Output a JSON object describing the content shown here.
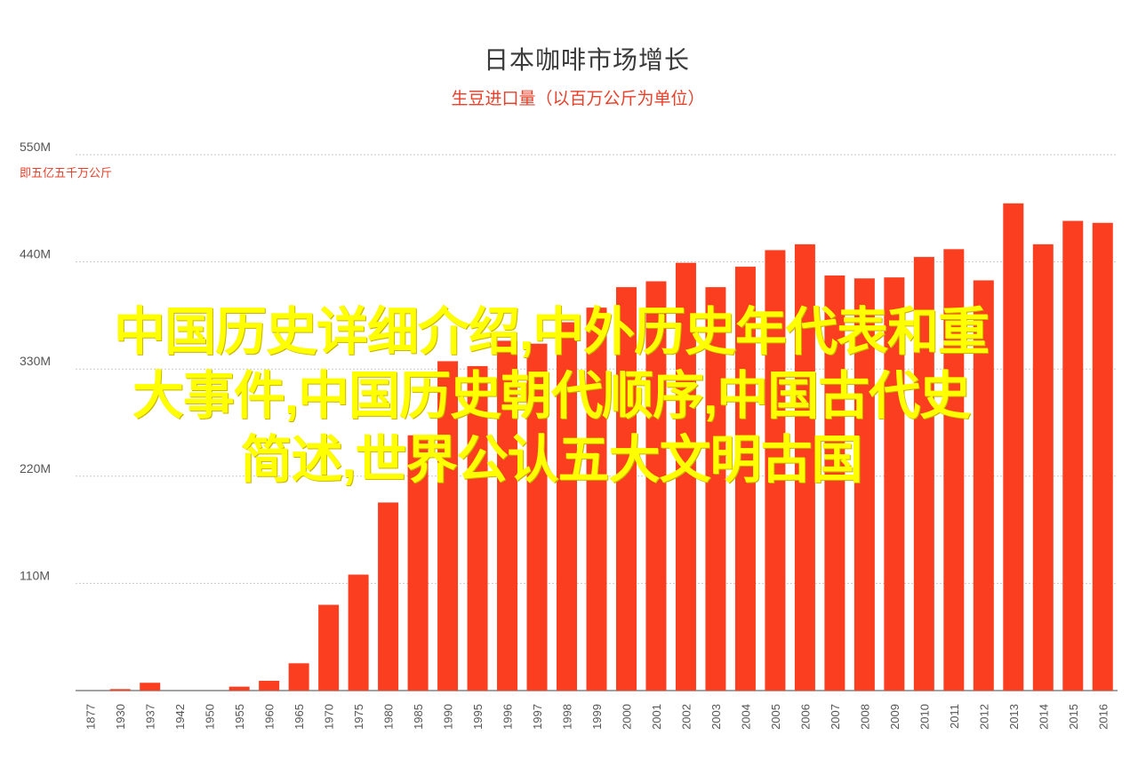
{
  "colors": {
    "bar": "#fb3e1f",
    "grid": "#c9c9c9",
    "axis_text": "#555555",
    "subtitle": "#e8402a",
    "overlay_text": "#ffff00"
  },
  "chart_data": {
    "type": "bar",
    "title": "日本咖啡市场增长",
    "subtitle": "生豆进口量（以百万公斤为单位）",
    "ymax_note": "即五亿五千万公斤",
    "xlabel": "",
    "ylabel": "",
    "ylim": [
      0,
      550
    ],
    "yticks": [
      {
        "value": 110,
        "label": "110M"
      },
      {
        "value": 220,
        "label": "220M"
      },
      {
        "value": 330,
        "label": "330M"
      },
      {
        "value": 440,
        "label": "440M"
      },
      {
        "value": 550,
        "label": "550M"
      }
    ],
    "grid": true,
    "legend": "none",
    "categories": [
      "1877",
      "1930",
      "1937",
      "1942",
      "1950",
      "1955",
      "1960",
      "1965",
      "1970",
      "1975",
      "1980",
      "1985",
      "1990",
      "1995",
      "1996",
      "1997",
      "1998",
      "1999",
      "2000",
      "2001",
      "2002",
      "2003",
      "2004",
      "2005",
      "2006",
      "2007",
      "2008",
      "2009",
      "2010",
      "2011",
      "2012",
      "2013",
      "2014",
      "2015",
      "2016"
    ],
    "values": [
      0,
      1.5,
      8,
      0,
      0,
      4,
      10,
      28,
      88,
      119,
      193,
      262,
      338,
      333,
      359,
      356,
      378,
      393,
      414,
      420,
      439,
      414,
      435,
      452,
      458,
      426,
      423,
      424,
      445,
      453,
      421,
      500,
      458,
      482,
      480
    ]
  },
  "overlay": {
    "lines": [
      "中国历史详细介绍,中外历史年代表和重",
      "大事件,中国历史朝代顺序,中国古代史",
      "简述,世界公认五大文明古国"
    ]
  }
}
